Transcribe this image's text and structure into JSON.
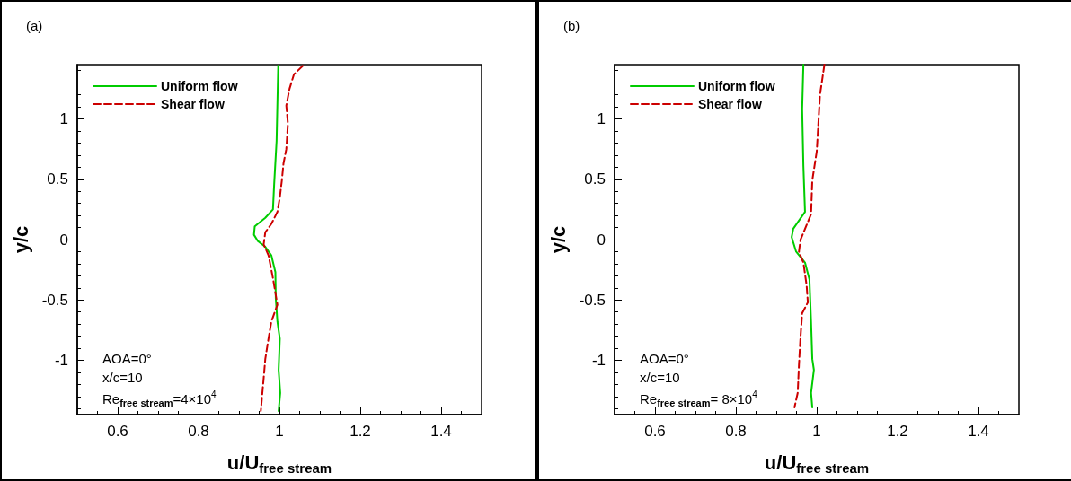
{
  "chart_data": [
    {
      "type": "line",
      "title": "(a)",
      "xlabel": "u/U$_{free stream}$",
      "ylabel": "y/c",
      "xlim": [
        0.5,
        1.5
      ],
      "xticks": [
        0.6,
        0.8,
        1,
        1.2,
        1.4
      ],
      "ylim": [
        -1.45,
        1.45
      ],
      "yticks": [
        -1,
        -0.5,
        0,
        0.5,
        1
      ],
      "legend": "top left",
      "marker": "none",
      "grid": false,
      "annotations": [
        "AOA=0°",
        "x/c=10",
        "Re$_{free stream}$=4×10$^{4}$"
      ],
      "series": [
        {
          "name": "Uniform flow",
          "color": "#00cc00",
          "line_style": "solid",
          "x": [
            0.997,
            0.993,
            0.987,
            0.984,
            0.965,
            0.939,
            0.937,
            0.946,
            0.965,
            0.98,
            0.99,
            0.991,
            0.995,
            1.001,
            0.998,
            1.002,
            0.998
          ],
          "values": [
            1.44,
            0.82,
            0.46,
            0.25,
            0.18,
            0.11,
            0.04,
            -0.01,
            -0.06,
            -0.13,
            -0.27,
            -0.49,
            -0.68,
            -0.82,
            -1.08,
            -1.27,
            -1.42
          ]
        },
        {
          "name": "Shear flow",
          "color": "#cc0000",
          "line_style": "dashed",
          "x": [
            1.058,
            1.036,
            1.025,
            1.017,
            1.021,
            1.017,
            1.01,
            1.006,
            1.001,
            0.995,
            0.98,
            0.965,
            0.961,
            0.973,
            0.984,
            0.995,
            0.98,
            0.973,
            0.965,
            0.961,
            0.957,
            0.954
          ],
          "values": [
            1.44,
            1.37,
            1.25,
            1.11,
            0.96,
            0.75,
            0.63,
            0.49,
            0.35,
            0.23,
            0.13,
            0.06,
            -0.04,
            -0.13,
            -0.32,
            -0.54,
            -0.68,
            -0.82,
            -0.99,
            -1.15,
            -1.3,
            -1.42
          ]
        }
      ]
    },
    {
      "type": "line",
      "title": "(b)",
      "xlabel": "u/U$_{free stream}$",
      "ylabel": "y/c",
      "xlim": [
        0.5,
        1.5
      ],
      "xticks": [
        0.6,
        0.8,
        1,
        1.2,
        1.4
      ],
      "ylim": [
        -1.45,
        1.45
      ],
      "yticks": [
        -1,
        -0.5,
        0,
        0.5,
        1
      ],
      "legend": "top left",
      "marker": "none",
      "grid": false,
      "annotations": [
        "AOA=0°",
        "x/c=10",
        "Re$_{free stream}$= 8×10$^{4}$"
      ],
      "series": [
        {
          "name": "Uniform flow",
          "color": "#00cc00",
          "line_style": "solid",
          "x": [
            0.967,
            0.964,
            0.967,
            0.971,
            0.942,
            0.938,
            0.949,
            0.971,
            0.982,
            0.986,
            0.989,
            0.993,
            0.986,
            0.989
          ],
          "values": [
            1.45,
            1.08,
            0.61,
            0.23,
            0.09,
            0.02,
            -0.1,
            -0.19,
            -0.33,
            -0.68,
            -0.99,
            -1.08,
            -1.27,
            -1.39
          ]
        },
        {
          "name": "Shear flow",
          "color": "#cc0000",
          "line_style": "dashed",
          "x": [
            1.019,
            1.008,
            1.004,
            1.0,
            0.989,
            0.986,
            0.96,
            0.956,
            0.967,
            0.975,
            0.978,
            0.964,
            0.96,
            0.956,
            0.953,
            0.945
          ],
          "values": [
            1.45,
            1.2,
            0.96,
            0.73,
            0.49,
            0.21,
            0.0,
            -0.1,
            -0.19,
            -0.38,
            -0.52,
            -0.61,
            -0.8,
            -1.04,
            -1.27,
            -1.39
          ]
        }
      ]
    }
  ]
}
